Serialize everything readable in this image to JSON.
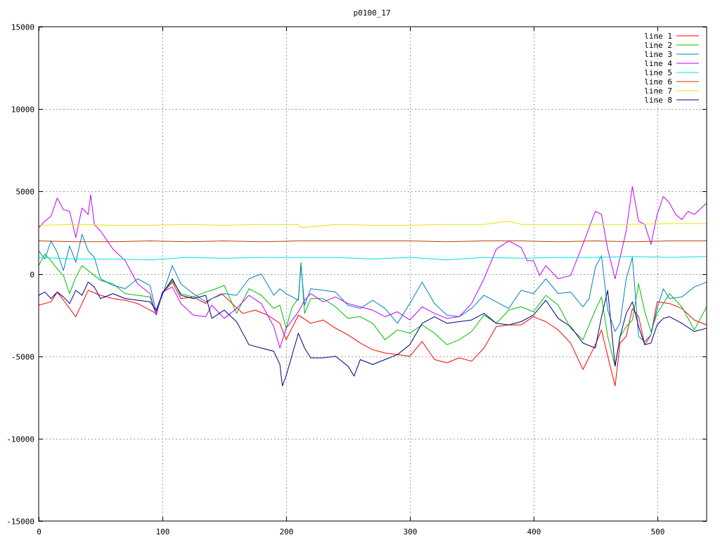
{
  "chart_data": {
    "type": "line",
    "title": "p0100_17",
    "xlabel": "",
    "ylabel": "",
    "xlim": [
      0,
      540
    ],
    "ylim": [
      -15000,
      15000
    ],
    "grid": true,
    "legend_position": "top-right",
    "x_ticks": [
      0,
      100,
      200,
      300,
      400,
      500
    ],
    "y_ticks": [
      -15000,
      -10000,
      -5000,
      0,
      5000,
      10000,
      15000
    ],
    "series": [
      {
        "name": "line 1",
        "color": "#ff0000",
        "x": [
          0,
          10,
          15,
          20,
          30,
          40,
          50,
          60,
          70,
          80,
          90,
          95,
          100,
          108,
          115,
          125,
          135,
          140,
          148,
          155,
          165,
          175,
          185,
          195,
          200,
          210,
          220,
          230,
          240,
          250,
          260,
          270,
          280,
          290,
          300,
          310,
          320,
          330,
          340,
          350,
          360,
          370,
          380,
          390,
          400,
          410,
          420,
          430,
          440,
          450,
          455,
          460,
          466,
          470,
          475,
          480,
          485,
          490,
          495,
          500,
          510,
          520,
          530,
          540
        ],
        "y": [
          -1900,
          -1700,
          -1100,
          -1600,
          -2600,
          -1000,
          -1300,
          -1500,
          -1600,
          -1800,
          -2200,
          -2400,
          -1200,
          -500,
          -1500,
          -1400,
          -1800,
          -1500,
          -1200,
          -1700,
          -2400,
          -2200,
          -2500,
          -3000,
          -4000,
          -2500,
          -3000,
          -2800,
          -3300,
          -3700,
          -4200,
          -4600,
          -4800,
          -4900,
          -5000,
          -4100,
          -5200,
          -5400,
          -5100,
          -5300,
          -4500,
          -3200,
          -3100,
          -3100,
          -2600,
          -2900,
          -3400,
          -4200,
          -5800,
          -4300,
          -3400,
          -5000,
          -6800,
          -4200,
          -3800,
          -2100,
          -2600,
          -4300,
          -3700,
          -1700,
          -1800,
          -2100,
          -2800,
          -3100
        ]
      },
      {
        "name": "line 2",
        "color": "#00c000",
        "x": [
          0,
          5,
          10,
          15,
          20,
          25,
          30,
          35,
          40,
          45,
          50,
          60,
          70,
          80,
          90,
          95,
          100,
          108,
          115,
          125,
          135,
          140,
          150,
          160,
          170,
          180,
          190,
          195,
          200,
          205,
          210,
          212,
          215,
          220,
          230,
          240,
          250,
          260,
          270,
          280,
          290,
          300,
          310,
          320,
          330,
          340,
          350,
          360,
          370,
          380,
          390,
          400,
          410,
          420,
          430,
          440,
          450,
          455,
          460,
          466,
          470,
          475,
          480,
          485,
          490,
          495,
          500,
          510,
          520,
          530,
          540
        ],
        "y": [
          500,
          1200,
          800,
          300,
          -100,
          -1200,
          -200,
          500,
          200,
          -100,
          -400,
          -600,
          -1200,
          -1300,
          -1400,
          -2500,
          -1200,
          -400,
          -1200,
          -1400,
          -1100,
          -1000,
          -700,
          -2400,
          -900,
          -1300,
          -2100,
          -1900,
          -3300,
          -2000,
          -1500,
          700,
          -2400,
          -1500,
          -1500,
          -2000,
          -2700,
          -2600,
          -3000,
          -4000,
          -3400,
          -3600,
          -3100,
          -3600,
          -4300,
          -4000,
          -3500,
          -2500,
          -3000,
          -2200,
          -2000,
          -2300,
          -1300,
          -1900,
          -3300,
          -4000,
          -2200,
          -1400,
          -3800,
          -5600,
          -3800,
          -3200,
          -2800,
          -600,
          -2300,
          -3500,
          -2400,
          -1200,
          -2000,
          -3400,
          -2000
        ]
      },
      {
        "name": "line 3",
        "color": "#0080c0",
        "x": [
          0,
          5,
          10,
          15,
          20,
          25,
          30,
          35,
          40,
          45,
          50,
          60,
          70,
          80,
          90,
          95,
          100,
          108,
          115,
          125,
          135,
          140,
          150,
          160,
          170,
          180,
          190,
          195,
          200,
          210,
          212,
          215,
          220,
          230,
          240,
          250,
          260,
          270,
          280,
          290,
          300,
          310,
          320,
          330,
          340,
          350,
          360,
          370,
          380,
          390,
          400,
          410,
          420,
          430,
          440,
          445,
          450,
          455,
          460,
          466,
          470,
          475,
          480,
          485,
          490,
          495,
          500,
          505,
          510,
          520,
          530,
          540
        ],
        "y": [
          1400,
          900,
          2000,
          1300,
          200,
          1700,
          700,
          2400,
          1400,
          1000,
          -300,
          -700,
          -900,
          -300,
          -700,
          -2300,
          -1300,
          500,
          -600,
          -1200,
          -1700,
          -1500,
          -1200,
          -1300,
          -300,
          0,
          -1300,
          -900,
          -1200,
          -1600,
          500,
          -1900,
          -900,
          -1000,
          -1100,
          -1900,
          -2100,
          -1600,
          -2100,
          -3000,
          -1800,
          -500,
          -1800,
          -2500,
          -2600,
          -2100,
          -1300,
          -1700,
          -2100,
          -1000,
          -1200,
          -300,
          -1200,
          -1100,
          -2000,
          -1500,
          400,
          1100,
          -2200,
          -3500,
          -3000,
          -300,
          1000,
          -3800,
          -4100,
          -3700,
          -2100,
          -900,
          -1500,
          -1400,
          -800,
          -500
        ]
      },
      {
        "name": "line 4",
        "color": "#c000ff",
        "x": [
          0,
          5,
          10,
          15,
          20,
          25,
          30,
          35,
          40,
          42,
          45,
          50,
          60,
          70,
          80,
          90,
          95,
          100,
          108,
          115,
          125,
          135,
          140,
          150,
          160,
          170,
          180,
          190,
          195,
          200,
          210,
          215,
          220,
          230,
          240,
          250,
          260,
          270,
          280,
          290,
          300,
          310,
          320,
          330,
          340,
          350,
          360,
          370,
          380,
          390,
          395,
          400,
          405,
          410,
          420,
          430,
          440,
          450,
          455,
          460,
          466,
          470,
          475,
          480,
          485,
          490,
          495,
          500,
          505,
          510,
          515,
          520,
          525,
          530,
          540
        ],
        "y": [
          2800,
          3200,
          3500,
          4600,
          3900,
          3800,
          2200,
          4000,
          3600,
          4800,
          3000,
          2600,
          1500,
          800,
          -600,
          -1200,
          -2500,
          -1100,
          -800,
          -1800,
          -2500,
          -2600,
          -1900,
          -2700,
          -2100,
          -1300,
          -1800,
          -3200,
          -4500,
          -3300,
          -2300,
          -1600,
          -1200,
          -1700,
          -1400,
          -1800,
          -2000,
          -2200,
          -2600,
          -2300,
          -2800,
          -2000,
          -2400,
          -2700,
          -2600,
          -1800,
          -300,
          1500,
          2000,
          1600,
          800,
          800,
          -100,
          500,
          -300,
          -100,
          1800,
          3800,
          3600,
          1500,
          -300,
          1000,
          2600,
          5300,
          3200,
          3000,
          1800,
          3600,
          4700,
          4300,
          3600,
          3300,
          3800,
          3600,
          4300
        ]
      },
      {
        "name": "line 5",
        "color": "#00e0e0",
        "x": [
          0,
          30,
          60,
          90,
          120,
          150,
          180,
          210,
          240,
          270,
          300,
          330,
          360,
          390,
          420,
          450,
          480,
          510,
          540
        ],
        "y": [
          1000,
          900,
          900,
          850,
          1000,
          950,
          1000,
          1000,
          1000,
          900,
          1000,
          850,
          1000,
          950,
          1000,
          1000,
          1050,
          1000,
          1050
        ]
      },
      {
        "name": "line 6",
        "color": "#c04000",
        "x": [
          0,
          30,
          60,
          90,
          120,
          150,
          180,
          210,
          240,
          270,
          300,
          330,
          360,
          390,
          420,
          450,
          480,
          510,
          540
        ],
        "y": [
          2000,
          1950,
          1950,
          2000,
          1950,
          2000,
          1950,
          2000,
          2000,
          2000,
          2000,
          1950,
          2000,
          2000,
          1950,
          2000,
          1950,
          2000,
          2000
        ]
      },
      {
        "name": "line 7",
        "color": "#f0e000",
        "x": [
          0,
          30,
          60,
          90,
          120,
          150,
          180,
          210,
          212,
          240,
          270,
          300,
          330,
          360,
          380,
          390,
          420,
          450,
          480,
          510,
          540
        ],
        "y": [
          2950,
          3000,
          2950,
          2950,
          3000,
          2950,
          3000,
          3000,
          2800,
          3000,
          2950,
          2950,
          3000,
          3000,
          3200,
          3000,
          3000,
          3000,
          3000,
          3050,
          3050
        ]
      },
      {
        "name": "line 8",
        "color": "#000080",
        "x": [
          0,
          5,
          10,
          15,
          20,
          25,
          30,
          35,
          40,
          45,
          50,
          60,
          70,
          80,
          90,
          95,
          100,
          108,
          115,
          125,
          135,
          140,
          150,
          160,
          170,
          180,
          190,
          195,
          197,
          200,
          205,
          210,
          215,
          220,
          230,
          240,
          250,
          255,
          260,
          270,
          280,
          290,
          300,
          310,
          320,
          330,
          340,
          350,
          360,
          370,
          380,
          390,
          400,
          410,
          420,
          430,
          440,
          450,
          455,
          460,
          466,
          470,
          475,
          480,
          485,
          490,
          495,
          500,
          505,
          510,
          520,
          530,
          540
        ],
        "y": [
          -1300,
          -1100,
          -1500,
          -1100,
          -1400,
          -1800,
          -1000,
          -1300,
          -500,
          -800,
          -1500,
          -1200,
          -1500,
          -1600,
          -1700,
          -2200,
          -1200,
          -300,
          -1300,
          -1500,
          -1300,
          -2700,
          -2200,
          -2900,
          -4300,
          -4500,
          -4700,
          -5500,
          -6800,
          -6200,
          -4900,
          -3600,
          -4500,
          -5100,
          -5100,
          -5000,
          -5600,
          -6200,
          -5200,
          -5500,
          -5200,
          -4900,
          -4300,
          -3000,
          -2600,
          -3000,
          -2900,
          -2800,
          -2400,
          -3000,
          -3100,
          -2900,
          -2500,
          -1600,
          -2700,
          -3200,
          -4200,
          -4500,
          -2600,
          -1000,
          -5600,
          -3800,
          -2400,
          -1700,
          -3200,
          -4300,
          -4200,
          -3100,
          -2700,
          -2600,
          -3000,
          -3500,
          -3300
        ]
      }
    ]
  }
}
